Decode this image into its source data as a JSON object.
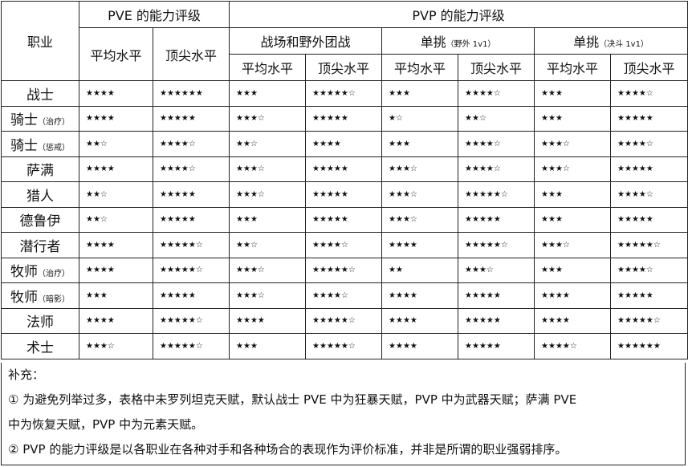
{
  "header": {
    "class_col": "职业",
    "pve_group": "PVE 的能力评级",
    "pvp_group": "PVP 的能力评级",
    "bg": "战场和野外团战",
    "duel_field": "单挑",
    "duel_field_note": "（野外 1v1）",
    "duel_arena": "单挑",
    "duel_arena_note": "（决斗 1v1）",
    "avg": "平均水平",
    "top": "顶尖水平"
  },
  "rows": [
    {
      "name": "战士",
      "note": "",
      "r": [
        "★★★★",
        "★★★★★★",
        "★★★",
        "★★★★★☆",
        "★★★",
        "★★★★☆",
        "★★★",
        "★★★★☆"
      ]
    },
    {
      "name": "骑士",
      "note": "（治疗）",
      "r": [
        "★★★★",
        "★★★★★",
        "★★★☆",
        "★★★★★",
        "★☆",
        "★★☆",
        "★★★",
        "★★★★★"
      ]
    },
    {
      "name": "骑士",
      "note": "（惩戒）",
      "r": [
        "★★☆",
        "★★★★☆",
        "★★☆",
        "★★★★",
        "★★★",
        "★★★★☆",
        "★★★☆",
        "★★★★☆"
      ]
    },
    {
      "name": "萨满",
      "note": "",
      "r": [
        "★★★★",
        "★★★★☆",
        "★★★☆",
        "★★★★★",
        "★★★☆",
        "★★★★☆",
        "★★★☆",
        "★★★★★"
      ]
    },
    {
      "name": "猎人",
      "note": "",
      "r": [
        "★★☆",
        "★★★★★",
        "★★★☆",
        "★★★★★",
        "★★★☆",
        "★★★★★☆",
        "★★★",
        "★★★★☆"
      ]
    },
    {
      "name": "德鲁伊",
      "note": "",
      "r": [
        "★★☆",
        "★★★★★",
        "★★★",
        "★★★★★",
        "★★★☆",
        "★★★★★",
        "★★★",
        "★★★★★"
      ]
    },
    {
      "name": "潜行者",
      "note": "",
      "r": [
        "★★★★",
        "★★★★★☆",
        "★★☆",
        "★★★★☆",
        "★★★★",
        "★★★★★☆",
        "★★★☆",
        "★★★★★☆"
      ]
    },
    {
      "name": "牧师",
      "note": "（治疗）",
      "r": [
        "★★★★",
        "★★★★★☆",
        "★★★☆",
        "★★★★★☆",
        "★★",
        "★★★☆",
        "★★★",
        "★★★★☆"
      ]
    },
    {
      "name": "牧师",
      "note": "（暗影）",
      "r": [
        "★★★",
        "★★★★★",
        "★★★☆",
        "★★★★☆",
        "★★★★",
        "★★★★★",
        "★★★★",
        "★★★★★"
      ]
    },
    {
      "name": "法师",
      "note": "",
      "r": [
        "★★★★",
        "★★★★★☆",
        "★★★★",
        "★★★★★☆",
        "★★★★",
        "★★★★★",
        "★★★★",
        "★★★★★☆"
      ]
    },
    {
      "name": "术士",
      "note": "",
      "r": [
        "★★★☆",
        "★★★★★☆",
        "★★★",
        "★★★★★☆",
        "★★★★",
        "★★★★★",
        "★★★★☆",
        "★★★★★★"
      ]
    }
  ],
  "notes": {
    "title": "补充：",
    "n1a": "① 为避免列举过多，表格中未罗列坦克天赋，默认战士 PVE 中为狂暴天赋，PVP 中为武器天赋；萨满 PVE",
    "n1b": "中为恢复天赋，PVP 中为元素天赋。",
    "n2": "② PVP 的能力评级是以各职业在各种对手和各种场合的表现作为评价标准，并非是所谓的职业强弱排序。"
  }
}
